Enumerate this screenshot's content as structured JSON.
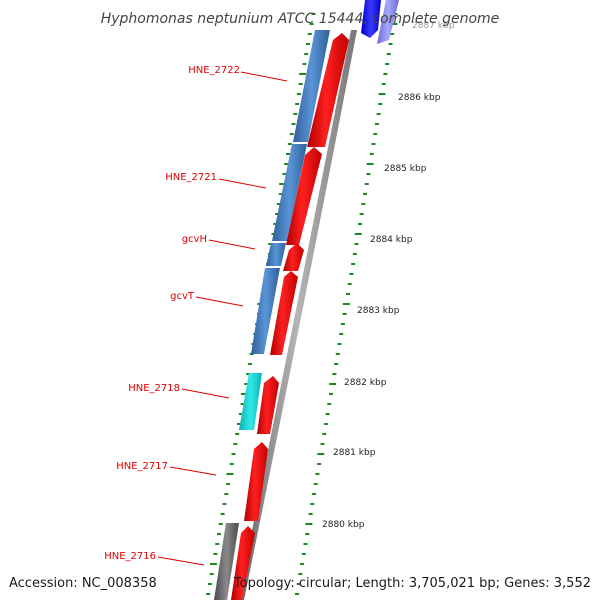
{
  "title": "Hyphomonas neptunium ATCC 15444, complete genome",
  "accession": "Accession: NC_008358",
  "topology": "Topology: circular; Length: 3,705,021 bp; Genes: 3,552",
  "colors": {
    "background": "#ffffff",
    "label": "#e00000",
    "backbone": "#8c8c8c",
    "tick": "#1e8a1e",
    "forward_cds": "#ff0000",
    "reverse_cds_blue": "#3f7bbf",
    "reverse_cds_cyan": "#16d2d2",
    "reverse_cds_gray": "#6b6b6b",
    "top_blue": "#1a1aff",
    "top_lavender": "#8a8aee"
  },
  "gene_labels": [
    "HNE_2722",
    "HNE_2721",
    "gcvH",
    "gcvT",
    "HNE_2718",
    "HNE_2717",
    "HNE_2716"
  ],
  "scale_labels": [
    "2887 kbp",
    "2886 kbp",
    "2885 kbp",
    "2884 kbp",
    "2883 kbp",
    "2882 kbp",
    "2881 kbp",
    "2880 kbp"
  ]
}
